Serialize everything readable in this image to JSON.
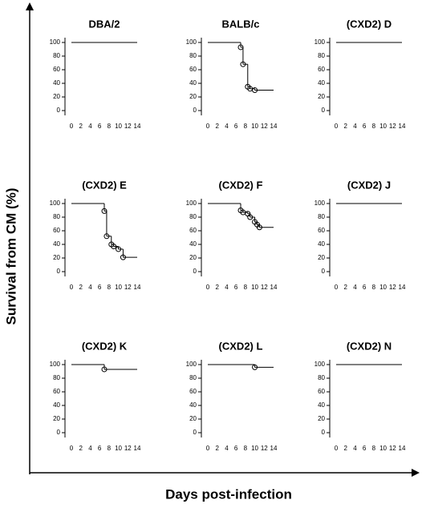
{
  "x_label": "Days post-infection",
  "y_label": "Survival from CM  (%)",
  "chart_data": [
    {
      "type": "step",
      "title": "DBA/2",
      "x": [
        0,
        14
      ],
      "values": [
        100,
        100
      ],
      "xlim": [
        0,
        14
      ],
      "ylim": [
        0,
        100
      ],
      "xticks": [
        0,
        2,
        4,
        6,
        8,
        10,
        12,
        14
      ],
      "yticks": [
        0,
        20,
        40,
        60,
        80,
        100
      ],
      "color": "#000000"
    },
    {
      "type": "step",
      "title": "BALB/c",
      "x": [
        0,
        7,
        7.5,
        8.5,
        9,
        10,
        14
      ],
      "values": [
        100,
        93,
        68,
        35,
        32,
        30,
        30
      ],
      "xlim": [
        0,
        14
      ],
      "ylim": [
        0,
        100
      ],
      "xticks": [
        0,
        2,
        4,
        6,
        8,
        10,
        12,
        14
      ],
      "yticks": [
        0,
        20,
        40,
        60,
        80,
        100
      ],
      "color": "#000000"
    },
    {
      "type": "step",
      "title": "(CXD2) D",
      "x": [
        0,
        14
      ],
      "values": [
        100,
        100
      ],
      "xlim": [
        0,
        14
      ],
      "ylim": [
        0,
        100
      ],
      "xticks": [
        0,
        2,
        4,
        6,
        8,
        10,
        12,
        14
      ],
      "yticks": [
        0,
        20,
        40,
        60,
        80,
        100
      ],
      "color": "#000000"
    },
    {
      "type": "step",
      "title": "(CXD2) E",
      "x": [
        0,
        7,
        7.5,
        8.5,
        9,
        10,
        11,
        14
      ],
      "values": [
        100,
        89,
        52,
        40,
        37,
        33,
        21,
        21
      ],
      "xlim": [
        0,
        14
      ],
      "ylim": [
        0,
        100
      ],
      "xticks": [
        0,
        2,
        4,
        6,
        8,
        10,
        12,
        14
      ],
      "yticks": [
        0,
        20,
        40,
        60,
        80,
        100
      ],
      "color": "#000000"
    },
    {
      "type": "step",
      "title": "(CXD2) F",
      "x": [
        0,
        7,
        7.5,
        8.5,
        9,
        10,
        10.5,
        11,
        14
      ],
      "values": [
        100,
        90,
        87,
        85,
        80,
        73,
        69,
        65,
        65
      ],
      "xlim": [
        0,
        14
      ],
      "ylim": [
        0,
        100
      ],
      "xticks": [
        0,
        2,
        4,
        6,
        8,
        10,
        12,
        14
      ],
      "yticks": [
        0,
        20,
        40,
        60,
        80,
        100
      ],
      "color": "#000000"
    },
    {
      "type": "step",
      "title": "(CXD2) J",
      "x": [
        0,
        14
      ],
      "values": [
        100,
        100
      ],
      "xlim": [
        0,
        14
      ],
      "ylim": [
        0,
        100
      ],
      "xticks": [
        0,
        2,
        4,
        6,
        8,
        10,
        12,
        14
      ],
      "yticks": [
        0,
        20,
        40,
        60,
        80,
        100
      ],
      "color": "#000000"
    },
    {
      "type": "step",
      "title": "(CXD2) K",
      "x": [
        0,
        7,
        14
      ],
      "values": [
        100,
        93,
        93
      ],
      "xlim": [
        0,
        14
      ],
      "ylim": [
        0,
        100
      ],
      "xticks": [
        0,
        2,
        4,
        6,
        8,
        10,
        12,
        14
      ],
      "yticks": [
        0,
        20,
        40,
        60,
        80,
        100
      ],
      "color": "#000000"
    },
    {
      "type": "step",
      "title": "(CXD2) L",
      "x": [
        0,
        10,
        14
      ],
      "values": [
        100,
        96,
        96
      ],
      "xlim": [
        0,
        14
      ],
      "ylim": [
        0,
        100
      ],
      "xticks": [
        0,
        2,
        4,
        6,
        8,
        10,
        12,
        14
      ],
      "yticks": [
        0,
        20,
        40,
        60,
        80,
        100
      ],
      "color": "#000000"
    },
    {
      "type": "step",
      "title": "(CXD2) N",
      "x": [
        0,
        14
      ],
      "values": [
        100,
        100
      ],
      "xlim": [
        0,
        14
      ],
      "ylim": [
        0,
        100
      ],
      "xticks": [
        0,
        2,
        4,
        6,
        8,
        10,
        12,
        14
      ],
      "yticks": [
        0,
        20,
        40,
        60,
        80,
        100
      ],
      "color": "#000000"
    }
  ]
}
